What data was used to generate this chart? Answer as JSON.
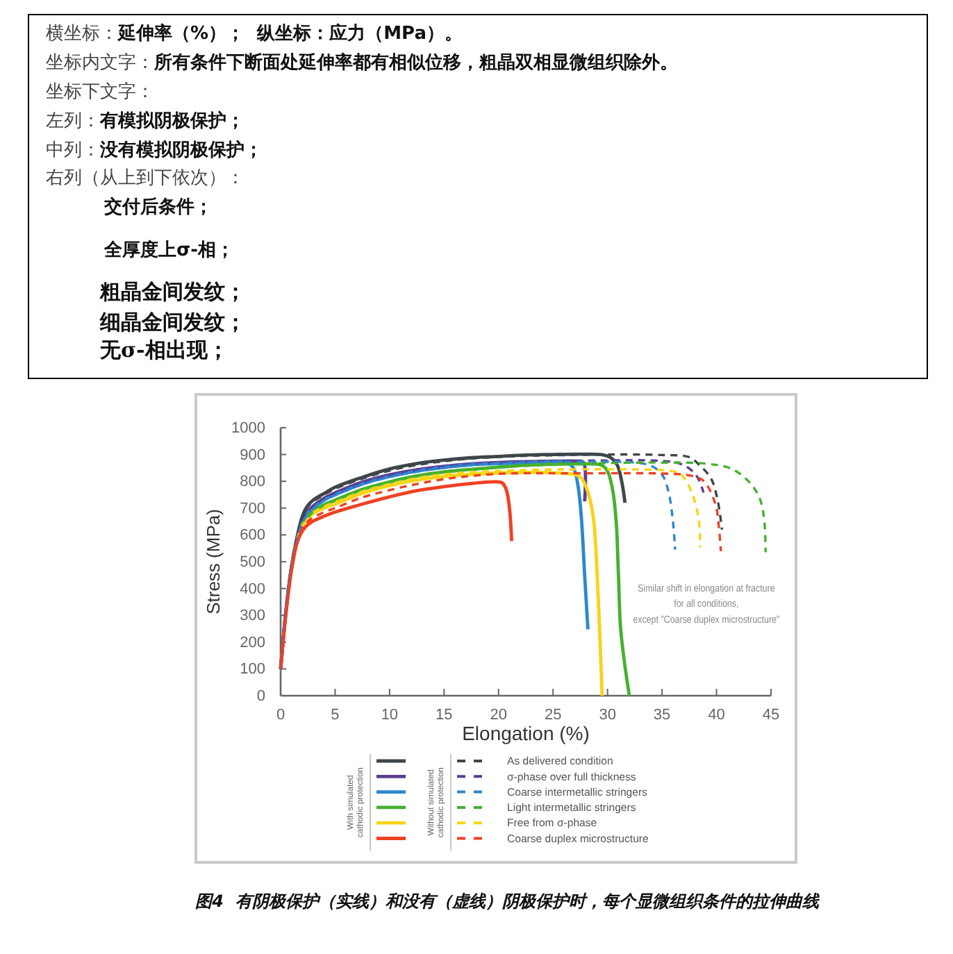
{
  "chart_data": {
    "type": "line",
    "title": "图4  有阴极保护（实线）和没有（虚线）阴极保护时，每个显微组织条件的拉伸曲线",
    "xlabel": "Elongation (%)",
    "ylabel": "Stress (MPa)",
    "xlim": [
      0,
      45
    ],
    "xticks": [
      0,
      5,
      10,
      15,
      20,
      25,
      30,
      35,
      40,
      45
    ],
    "ylim": [
      0,
      1000
    ],
    "yticks": [
      0,
      100,
      200,
      300,
      400,
      500,
      600,
      700,
      800,
      900,
      1000
    ],
    "legend": "bottom",
    "annotations": [
      "横坐标：延伸率（%）；  纵坐标：应力（MPa）。",
      "坐标内文字：所有条件下断面处延伸率都有相似位移，粗晶双相显微组织除外。",
      "坐标下文字：",
      "左列：有模拟阴极保护；",
      "中列：没有模拟阴极保护；",
      "右列（从上到下依次）：",
      "交付后条件；",
      "全厚度上σ-相；",
      "粗晶金间发纹；",
      "细晶金间发纹；",
      "无σ-相出现；",
      "Similar shift in elongation at fracture\nfor all conditions,\nexcept \"Coarse duplex microstructure\"",
      "With simulated\ncathodic protection",
      "Without simulated\ncathodic protection"
    ],
    "series": [
      {
        "color": "#3f4649",
        "line_style": "solid",
        "x": [
          0,
          0.5,
          1,
          1.5,
          2,
          2.5,
          3,
          4,
          5,
          7.5,
          10,
          12.5,
          15,
          17.5,
          20,
          22.5,
          25,
          27.5,
          29.5,
          30.3,
          30.9,
          31.3,
          31.6
        ],
        "values": [
          100,
          320,
          480,
          590,
          670,
          710,
          730,
          755,
          778,
          815,
          846,
          866,
          879,
          888,
          893,
          898,
          900,
          901,
          899,
          888,
          860,
          800,
          720
        ]
      },
      {
        "color": "#5c3d94",
        "line_style": "solid",
        "x": [
          0,
          0.5,
          1,
          1.5,
          2,
          2.5,
          3,
          4,
          5,
          7.5,
          10,
          12.5,
          15,
          17.5,
          20,
          22.5,
          25,
          27.3,
          27.8,
          27.9
        ],
        "values": [
          100,
          320,
          480,
          585,
          650,
          688,
          708,
          737,
          757,
          797,
          824,
          843,
          856,
          865,
          870,
          873,
          875,
          875,
          870,
          725
        ]
      },
      {
        "color": "#2e86cf",
        "line_style": "solid",
        "x": [
          0,
          0.5,
          1,
          1.5,
          2,
          2.5,
          3,
          4,
          5,
          7.5,
          10,
          12.5,
          15,
          17.5,
          20,
          22.5,
          25,
          26.3,
          26.9,
          27.3,
          27.6,
          27.9,
          28.2
        ],
        "values": [
          100,
          320,
          480,
          580,
          645,
          680,
          700,
          730,
          750,
          790,
          818,
          838,
          852,
          862,
          866,
          870,
          873,
          870,
          848,
          780,
          663,
          450,
          248
        ]
      },
      {
        "color": "#46b12e",
        "line_style": "solid",
        "x": [
          1,
          1.5,
          2,
          2.5,
          3,
          4,
          5,
          7.5,
          10,
          12.5,
          15,
          17.5,
          20,
          22.5,
          25,
          27.5,
          29.3,
          29.8,
          30.1,
          30.5,
          30.8,
          31,
          31.2,
          31.6,
          32
        ],
        "values": [
          475,
          575,
          638,
          668,
          688,
          713,
          730,
          770,
          798,
          820,
          835,
          845,
          853,
          860,
          864,
          865,
          862,
          850,
          828,
          760,
          646,
          450,
          250,
          110,
          0
        ]
      },
      {
        "color": "#f7d417",
        "line_style": "solid",
        "x": [
          1,
          1.5,
          2,
          2.5,
          3,
          4,
          5,
          7.5,
          10,
          12.5,
          15,
          17.5,
          20,
          22.5,
          25,
          27,
          27.6,
          28.2,
          28.7,
          29.1,
          29.5
        ],
        "values": [
          470,
          570,
          630,
          660,
          680,
          700,
          715,
          755,
          784,
          805,
          818,
          826,
          831,
          833,
          832,
          825,
          812,
          760,
          663,
          404,
          0
        ]
      },
      {
        "color": "#ef4123",
        "line_style": "solid",
        "x": [
          0,
          0.5,
          1,
          1.5,
          2,
          2.5,
          3,
          4,
          5,
          7.5,
          10,
          12.5,
          15,
          17.5,
          19.7,
          20.3,
          20.7,
          21,
          21.2
        ],
        "values": [
          100,
          310,
          470,
          570,
          615,
          638,
          652,
          670,
          685,
          715,
          742,
          765,
          780,
          792,
          798,
          795,
          770,
          700,
          577
        ]
      },
      {
        "name": "As delivered condition",
        "color": "#3f4649",
        "line_style": "dashed",
        "x": [
          0,
          0.5,
          1,
          1.5,
          2,
          2.5,
          3,
          4,
          5,
          7.5,
          10,
          12.5,
          15,
          17.5,
          20,
          22.5,
          25,
          30,
          35,
          37.5,
          38.4,
          39.5,
          40.1,
          40.5
        ],
        "values": [
          100,
          320,
          480,
          588,
          665,
          705,
          725,
          750,
          772,
          810,
          840,
          861,
          875,
          885,
          891,
          895,
          897,
          900,
          898,
          890,
          862,
          810,
          730,
          620
        ]
      },
      {
        "name": "σ-phase over full thickness",
        "color": "#5c3d94",
        "line_style": "dashed",
        "x": [
          0,
          0.5,
          1,
          1.5,
          2,
          2.5,
          3,
          4,
          5,
          7.5,
          10,
          12.5,
          15,
          17.5,
          20,
          22.5,
          25,
          30,
          34,
          36,
          37,
          38,
          38.5,
          38.8
        ],
        "values": [
          100,
          320,
          480,
          583,
          648,
          685,
          705,
          733,
          752,
          792,
          820,
          840,
          853,
          863,
          868,
          872,
          875,
          878,
          878,
          872,
          860,
          830,
          795,
          758
        ]
      },
      {
        "name": "Coarse intermetallic stringers",
        "color": "#2e86cf",
        "line_style": "dashed",
        "x": [
          0,
          0.5,
          1,
          1.5,
          2,
          2.5,
          3,
          4,
          5,
          7.5,
          10,
          12.5,
          15,
          17.5,
          20,
          22.5,
          25,
          30,
          32.5,
          34,
          35,
          35.6,
          36,
          36.2
        ],
        "values": [
          100,
          320,
          480,
          578,
          643,
          678,
          698,
          728,
          748,
          788,
          816,
          836,
          850,
          860,
          865,
          869,
          872,
          873,
          870,
          858,
          825,
          760,
          650,
          545
        ]
      },
      {
        "name": "Light intermetallic stringers",
        "color": "#46b12e",
        "line_style": "dashed",
        "x": [
          2.5,
          3,
          4,
          5,
          7.5,
          10,
          12.5,
          15,
          17.5,
          20,
          22.5,
          25,
          30,
          35,
          39,
          41.4,
          43.1,
          44,
          44.4,
          44.5
        ],
        "values": [
          666,
          686,
          711,
          728,
          768,
          796,
          818,
          833,
          844,
          852,
          858,
          863,
          868,
          870,
          866,
          846,
          793,
          732,
          646,
          535
        ]
      },
      {
        "name": "Free from σ-phase",
        "color": "#f7d417",
        "line_style": "dashed",
        "x": [
          3,
          4,
          5,
          7.5,
          10,
          12.5,
          15,
          17.5,
          20,
          22.5,
          25,
          30,
          33,
          35.5,
          36.7,
          37.8,
          38.4,
          38.5
        ],
        "values": [
          685,
          706,
          722,
          762,
          790,
          812,
          826,
          834,
          839,
          842,
          844,
          845,
          844,
          840,
          828,
          750,
          646,
          554
        ]
      },
      {
        "name": "Coarse duplex microstructure",
        "color": "#ef4123",
        "line_style": "dashed",
        "x": [
          0,
          0.5,
          1,
          1.5,
          2,
          2.5,
          3,
          4,
          5,
          7.5,
          10,
          12.5,
          15,
          17.5,
          20,
          22.5,
          25,
          30,
          35,
          37.5,
          38.8,
          39.9,
          40.2,
          40.4
        ],
        "values": [
          100,
          310,
          470,
          572,
          625,
          650,
          665,
          685,
          700,
          740,
          767,
          790,
          808,
          820,
          828,
          830,
          830,
          830,
          829,
          822,
          802,
          715,
          637,
          539
        ]
      }
    ]
  }
}
